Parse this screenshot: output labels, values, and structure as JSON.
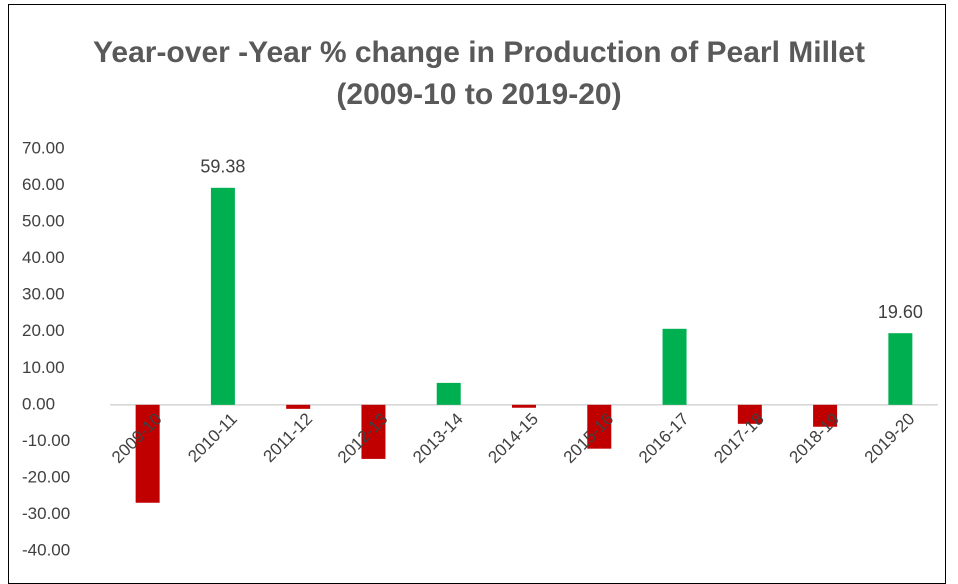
{
  "chart_data": {
    "type": "bar",
    "title": "Year-over -Year % change  in Production of Pearl Millet (2009-10 to 2019-20)",
    "categories": [
      "2009-10",
      "2010-11",
      "2011-12",
      "2012-13",
      "2013-14",
      "2014-15",
      "2015-16",
      "2016-17",
      "2017-18",
      "2018-19",
      "2019-20"
    ],
    "values": [
      -26.8,
      59.38,
      -1.1,
      -14.8,
      6.0,
      -0.8,
      -12.0,
      20.8,
      -5.2,
      -6.0,
      19.6
    ],
    "value_labels": [
      null,
      "59.38",
      null,
      null,
      null,
      null,
      null,
      null,
      null,
      null,
      "19.60"
    ],
    "colors": [
      "#c00000",
      "#00b050",
      "#c00000",
      "#c00000",
      "#00b050",
      "#c00000",
      "#c00000",
      "#00b050",
      "#c00000",
      "#c00000",
      "#00b050"
    ],
    "ylim": [
      -40,
      70
    ],
    "yticks": [
      {
        "value": -40,
        "label": "-40.00"
      },
      {
        "value": -30,
        "label": "-30.00"
      },
      {
        "value": -20,
        "label": "-20.00"
      },
      {
        "value": -10,
        "label": "-10.00"
      },
      {
        "value": 0,
        "label": "0.00"
      },
      {
        "value": 10,
        "label": "10.00"
      },
      {
        "value": 20,
        "label": "20.00"
      },
      {
        "value": 30,
        "label": "30.00"
      },
      {
        "value": 40,
        "label": "40.00"
      },
      {
        "value": 50,
        "label": "50.00"
      },
      {
        "value": 60,
        "label": "60.00"
      },
      {
        "value": 70,
        "label": "70.00"
      }
    ],
    "grid": false
  }
}
